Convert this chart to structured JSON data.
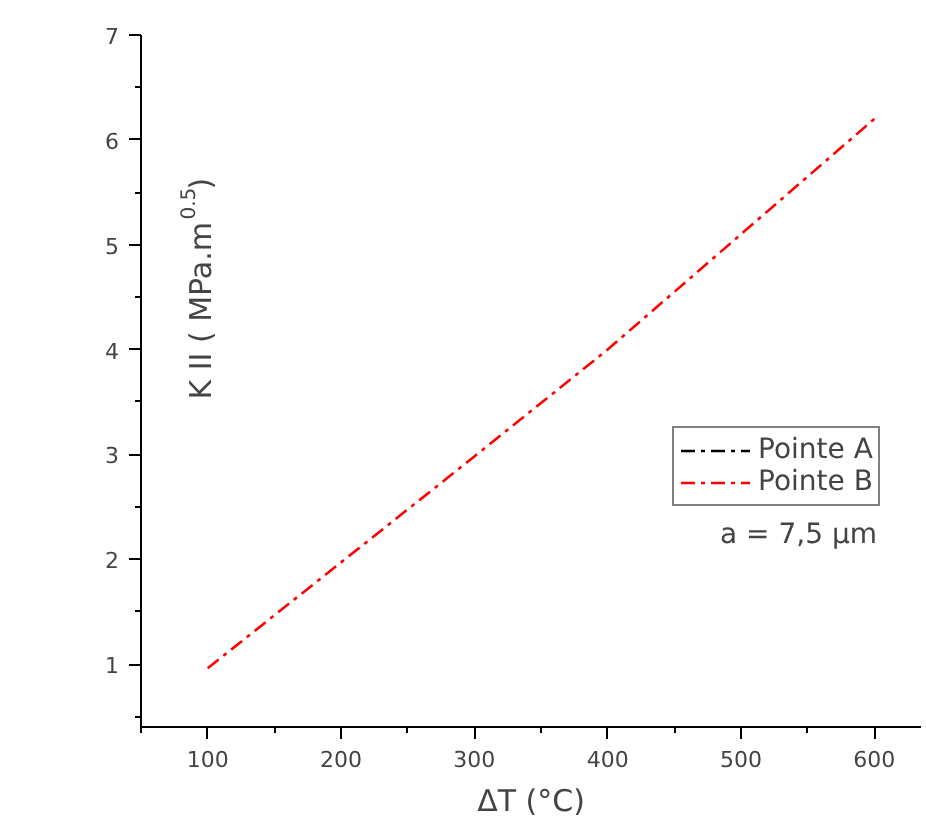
{
  "chart_data": {
    "type": "line",
    "xlabel": "ΔT (°C)",
    "ylabel": "K II ( MPa.m$^{0.5}$)",
    "x": [
      100,
      200,
      300,
      400,
      500,
      600
    ],
    "series": [
      {
        "name": "Pointe A",
        "color": "#000000",
        "values": [
          null,
          null,
          null,
          null,
          null,
          null
        ]
      },
      {
        "name": "Pointe B",
        "color": "#ff0000",
        "values": [
          0.96,
          1.97,
          2.98,
          4.0,
          5.1,
          6.2
        ]
      }
    ],
    "xlim": [
      50,
      635
    ],
    "ylim": [
      0.4,
      7
    ],
    "xticks": [
      100,
      200,
      300,
      400,
      500,
      600
    ],
    "yticks": [
      1,
      2,
      3,
      4,
      5,
      6,
      7
    ],
    "legend": "right",
    "grid": false,
    "line_style": "dashdot",
    "annotations": [
      "a = 7,5 μm"
    ]
  }
}
